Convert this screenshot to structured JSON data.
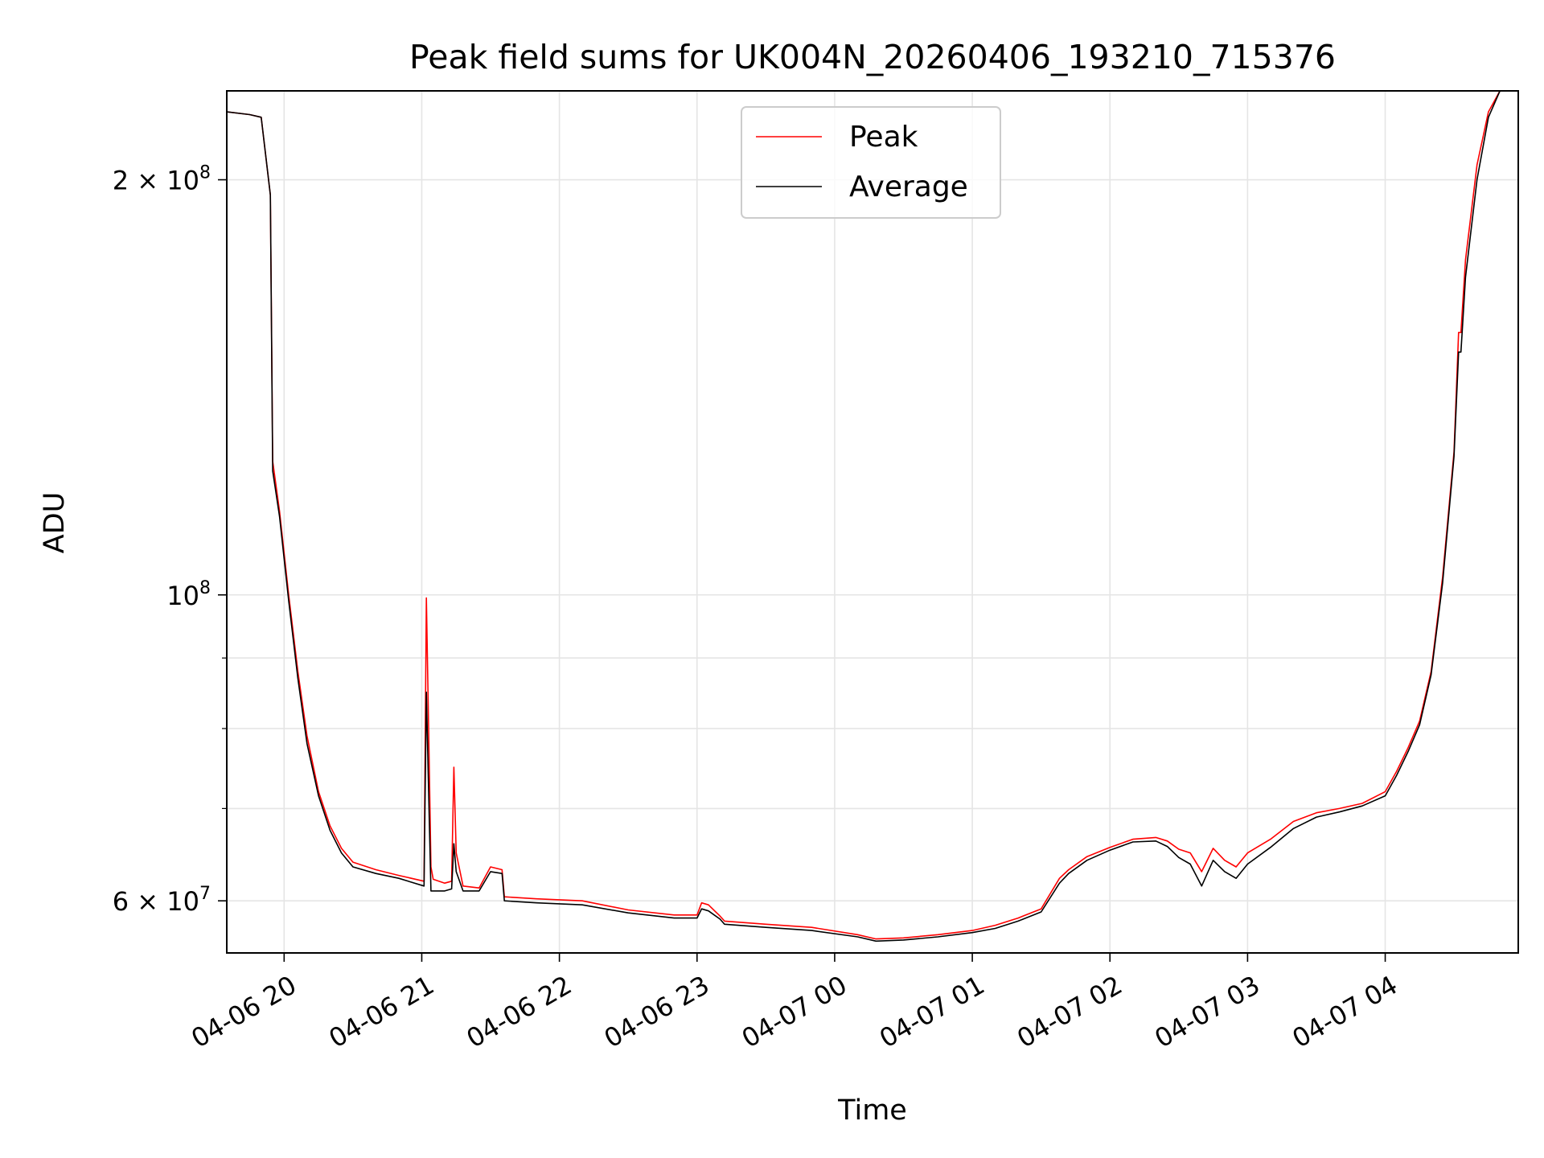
{
  "chart_data": {
    "type": "line",
    "title": "Peak field sums for UK004N_20260406_193210_715376",
    "xlabel": "Time",
    "ylabel": "ADU",
    "x_scale": "time",
    "y_scale": "log",
    "xlim": [
      "2026-04-06 19:35",
      "2026-04-07 04:58"
    ],
    "ylim": [
      55000000,
      232000000
    ],
    "x_ticks": [
      {
        "value": "2026-04-06 20:00",
        "label": "04-06 20"
      },
      {
        "value": "2026-04-06 21:00",
        "label": "04-06 21"
      },
      {
        "value": "2026-04-06 22:00",
        "label": "04-06 22"
      },
      {
        "value": "2026-04-06 23:00",
        "label": "04-06 23"
      },
      {
        "value": "2026-04-07 00:00",
        "label": "04-07 00"
      },
      {
        "value": "2026-04-07 01:00",
        "label": "04-07 01"
      },
      {
        "value": "2026-04-07 02:00",
        "label": "04-07 02"
      },
      {
        "value": "2026-04-07 03:00",
        "label": "04-07 03"
      },
      {
        "value": "2026-04-07 04:00",
        "label": "04-07 04"
      }
    ],
    "y_ticks_major": [
      {
        "value": 60000000,
        "label_base": "6 × 10",
        "label_exp": "7"
      },
      {
        "value": 100000000,
        "label_base": "10",
        "label_exp": "8"
      },
      {
        "value": 200000000,
        "label_base": "2 × 10",
        "label_exp": "8"
      }
    ],
    "y_ticks_minor": [
      70000000,
      80000000,
      90000000
    ],
    "grid": true,
    "legend_position": "top-center",
    "series": [
      {
        "name": "Peak",
        "color": "#ff0000",
        "x": [
          "2026-04-06 19:35",
          "2026-04-06 19:45",
          "2026-04-06 19:50",
          "2026-04-06 19:54",
          "2026-04-06 19:55",
          "2026-04-06 19:58",
          "2026-04-06 20:02",
          "2026-04-06 20:06",
          "2026-04-06 20:10",
          "2026-04-06 20:15",
          "2026-04-06 20:20",
          "2026-04-06 20:25",
          "2026-04-06 20:30",
          "2026-04-06 20:40",
          "2026-04-06 20:50",
          "2026-04-06 21:01",
          "2026-04-06 21:02",
          "2026-04-06 21:03",
          "2026-04-06 21:04",
          "2026-04-06 21:05",
          "2026-04-06 21:10",
          "2026-04-06 21:13",
          "2026-04-06 21:14",
          "2026-04-06 21:15",
          "2026-04-06 21:18",
          "2026-04-06 21:25",
          "2026-04-06 21:30",
          "2026-04-06 21:35",
          "2026-04-06 21:36",
          "2026-04-06 21:50",
          "2026-04-06 22:10",
          "2026-04-06 22:30",
          "2026-04-06 22:50",
          "2026-04-06 23:00",
          "2026-04-06 23:02",
          "2026-04-06 23:05",
          "2026-04-06 23:10",
          "2026-04-06 23:12",
          "2026-04-06 23:30",
          "2026-04-06 23:50",
          "2026-04-07 00:10",
          "2026-04-07 00:18",
          "2026-04-07 00:30",
          "2026-04-07 00:45",
          "2026-04-07 01:00",
          "2026-04-07 01:10",
          "2026-04-07 01:20",
          "2026-04-07 01:30",
          "2026-04-07 01:38",
          "2026-04-07 01:42",
          "2026-04-07 01:50",
          "2026-04-07 02:00",
          "2026-04-07 02:10",
          "2026-04-07 02:20",
          "2026-04-07 02:25",
          "2026-04-07 02:30",
          "2026-04-07 02:35",
          "2026-04-07 02:40",
          "2026-04-07 02:45",
          "2026-04-07 02:50",
          "2026-04-07 02:55",
          "2026-04-07 03:00",
          "2026-04-07 03:10",
          "2026-04-07 03:20",
          "2026-04-07 03:30",
          "2026-04-07 03:40",
          "2026-04-07 03:50",
          "2026-04-07 04:00",
          "2026-04-07 04:05",
          "2026-04-07 04:10",
          "2026-04-07 04:15",
          "2026-04-07 04:20",
          "2026-04-07 04:25",
          "2026-04-07 04:30",
          "2026-04-07 04:32",
          "2026-04-07 04:33",
          "2026-04-07 04:35",
          "2026-04-07 04:40",
          "2026-04-07 04:45",
          "2026-04-07 04:50",
          "2026-04-07 04:52",
          "2026-04-07 04:58"
        ],
        "values": [
          224000000,
          223000000,
          222000000,
          195000000,
          125000000,
          115000000,
          100000000,
          88000000,
          79000000,
          72000000,
          68000000,
          65500000,
          64000000,
          63200000,
          62600000,
          62000000,
          99500000,
          80000000,
          63500000,
          62200000,
          61800000,
          62000000,
          75000000,
          65000000,
          61500000,
          61300000,
          63500000,
          63200000,
          60400000,
          60200000,
          60000000,
          59100000,
          58600000,
          58600000,
          59800000,
          59600000,
          58500000,
          58000000,
          57700000,
          57400000,
          56700000,
          56300000,
          56400000,
          56700000,
          57100000,
          57600000,
          58300000,
          59200000,
          62300000,
          63200000,
          64600000,
          65600000,
          66500000,
          66700000,
          66300000,
          65400000,
          65000000,
          63000000,
          65500000,
          64200000,
          63500000,
          65000000,
          66500000,
          68500000,
          69500000,
          70000000,
          70600000,
          72000000,
          74500000,
          77500000,
          81000000,
          88000000,
          103000000,
          127000000,
          155000000,
          155000000,
          175000000,
          205000000,
          224000000,
          232000000,
          232000000,
          232000000
        ]
      },
      {
        "name": "Average",
        "color": "#000000",
        "x": [
          "2026-04-06 19:35",
          "2026-04-06 19:45",
          "2026-04-06 19:50",
          "2026-04-06 19:54",
          "2026-04-06 19:55",
          "2026-04-06 19:58",
          "2026-04-06 20:02",
          "2026-04-06 20:06",
          "2026-04-06 20:10",
          "2026-04-06 20:15",
          "2026-04-06 20:20",
          "2026-04-06 20:25",
          "2026-04-06 20:30",
          "2026-04-06 20:40",
          "2026-04-06 20:50",
          "2026-04-06 21:01",
          "2026-04-06 21:02",
          "2026-04-06 21:03",
          "2026-04-06 21:04",
          "2026-04-06 21:05",
          "2026-04-06 21:10",
          "2026-04-06 21:13",
          "2026-04-06 21:14",
          "2026-04-06 21:15",
          "2026-04-06 21:18",
          "2026-04-06 21:25",
          "2026-04-06 21:30",
          "2026-04-06 21:35",
          "2026-04-06 21:36",
          "2026-04-06 21:50",
          "2026-04-06 22:10",
          "2026-04-06 22:30",
          "2026-04-06 22:50",
          "2026-04-06 23:00",
          "2026-04-06 23:02",
          "2026-04-06 23:05",
          "2026-04-06 23:10",
          "2026-04-06 23:12",
          "2026-04-06 23:30",
          "2026-04-06 23:50",
          "2026-04-07 00:10",
          "2026-04-07 00:18",
          "2026-04-07 00:30",
          "2026-04-07 00:45",
          "2026-04-07 01:00",
          "2026-04-07 01:10",
          "2026-04-07 01:20",
          "2026-04-07 01:30",
          "2026-04-07 01:38",
          "2026-04-07 01:42",
          "2026-04-07 01:50",
          "2026-04-07 02:00",
          "2026-04-07 02:10",
          "2026-04-07 02:20",
          "2026-04-07 02:25",
          "2026-04-07 02:30",
          "2026-04-07 02:35",
          "2026-04-07 02:40",
          "2026-04-07 02:45",
          "2026-04-07 02:50",
          "2026-04-07 02:55",
          "2026-04-07 03:00",
          "2026-04-07 03:10",
          "2026-04-07 03:20",
          "2026-04-07 03:30",
          "2026-04-07 03:40",
          "2026-04-07 03:50",
          "2026-04-07 04:00",
          "2026-04-07 04:05",
          "2026-04-07 04:10",
          "2026-04-07 04:15",
          "2026-04-07 04:20",
          "2026-04-07 04:25",
          "2026-04-07 04:30",
          "2026-04-07 04:32",
          "2026-04-07 04:33",
          "2026-04-07 04:35",
          "2026-04-07 04:40",
          "2026-04-07 04:45",
          "2026-04-07 04:50",
          "2026-04-07 04:52",
          "2026-04-07 04:58"
        ],
        "values": [
          224000000,
          223000000,
          222000000,
          195000000,
          123000000,
          114000000,
          99000000,
          87000000,
          78000000,
          71500000,
          67500000,
          65000000,
          63500000,
          62800000,
          62300000,
          61500000,
          85000000,
          72000000,
          61000000,
          61000000,
          61000000,
          61200000,
          66000000,
          63000000,
          61000000,
          61000000,
          63000000,
          62800000,
          60000000,
          59800000,
          59600000,
          58800000,
          58300000,
          58300000,
          59200000,
          59000000,
          58200000,
          57700000,
          57400000,
          57100000,
          56500000,
          56100000,
          56200000,
          56500000,
          56900000,
          57300000,
          58000000,
          58900000,
          61800000,
          62800000,
          64200000,
          65300000,
          66200000,
          66300000,
          65700000,
          64500000,
          63800000,
          61500000,
          64200000,
          63000000,
          62300000,
          63800000,
          65600000,
          67700000,
          69000000,
          69600000,
          70300000,
          71500000,
          74000000,
          77000000,
          80500000,
          87500000,
          102000000,
          126000000,
          150000000,
          150000000,
          170000000,
          200000000,
          222000000,
          232000000,
          232000000,
          232000000
        ]
      }
    ]
  }
}
